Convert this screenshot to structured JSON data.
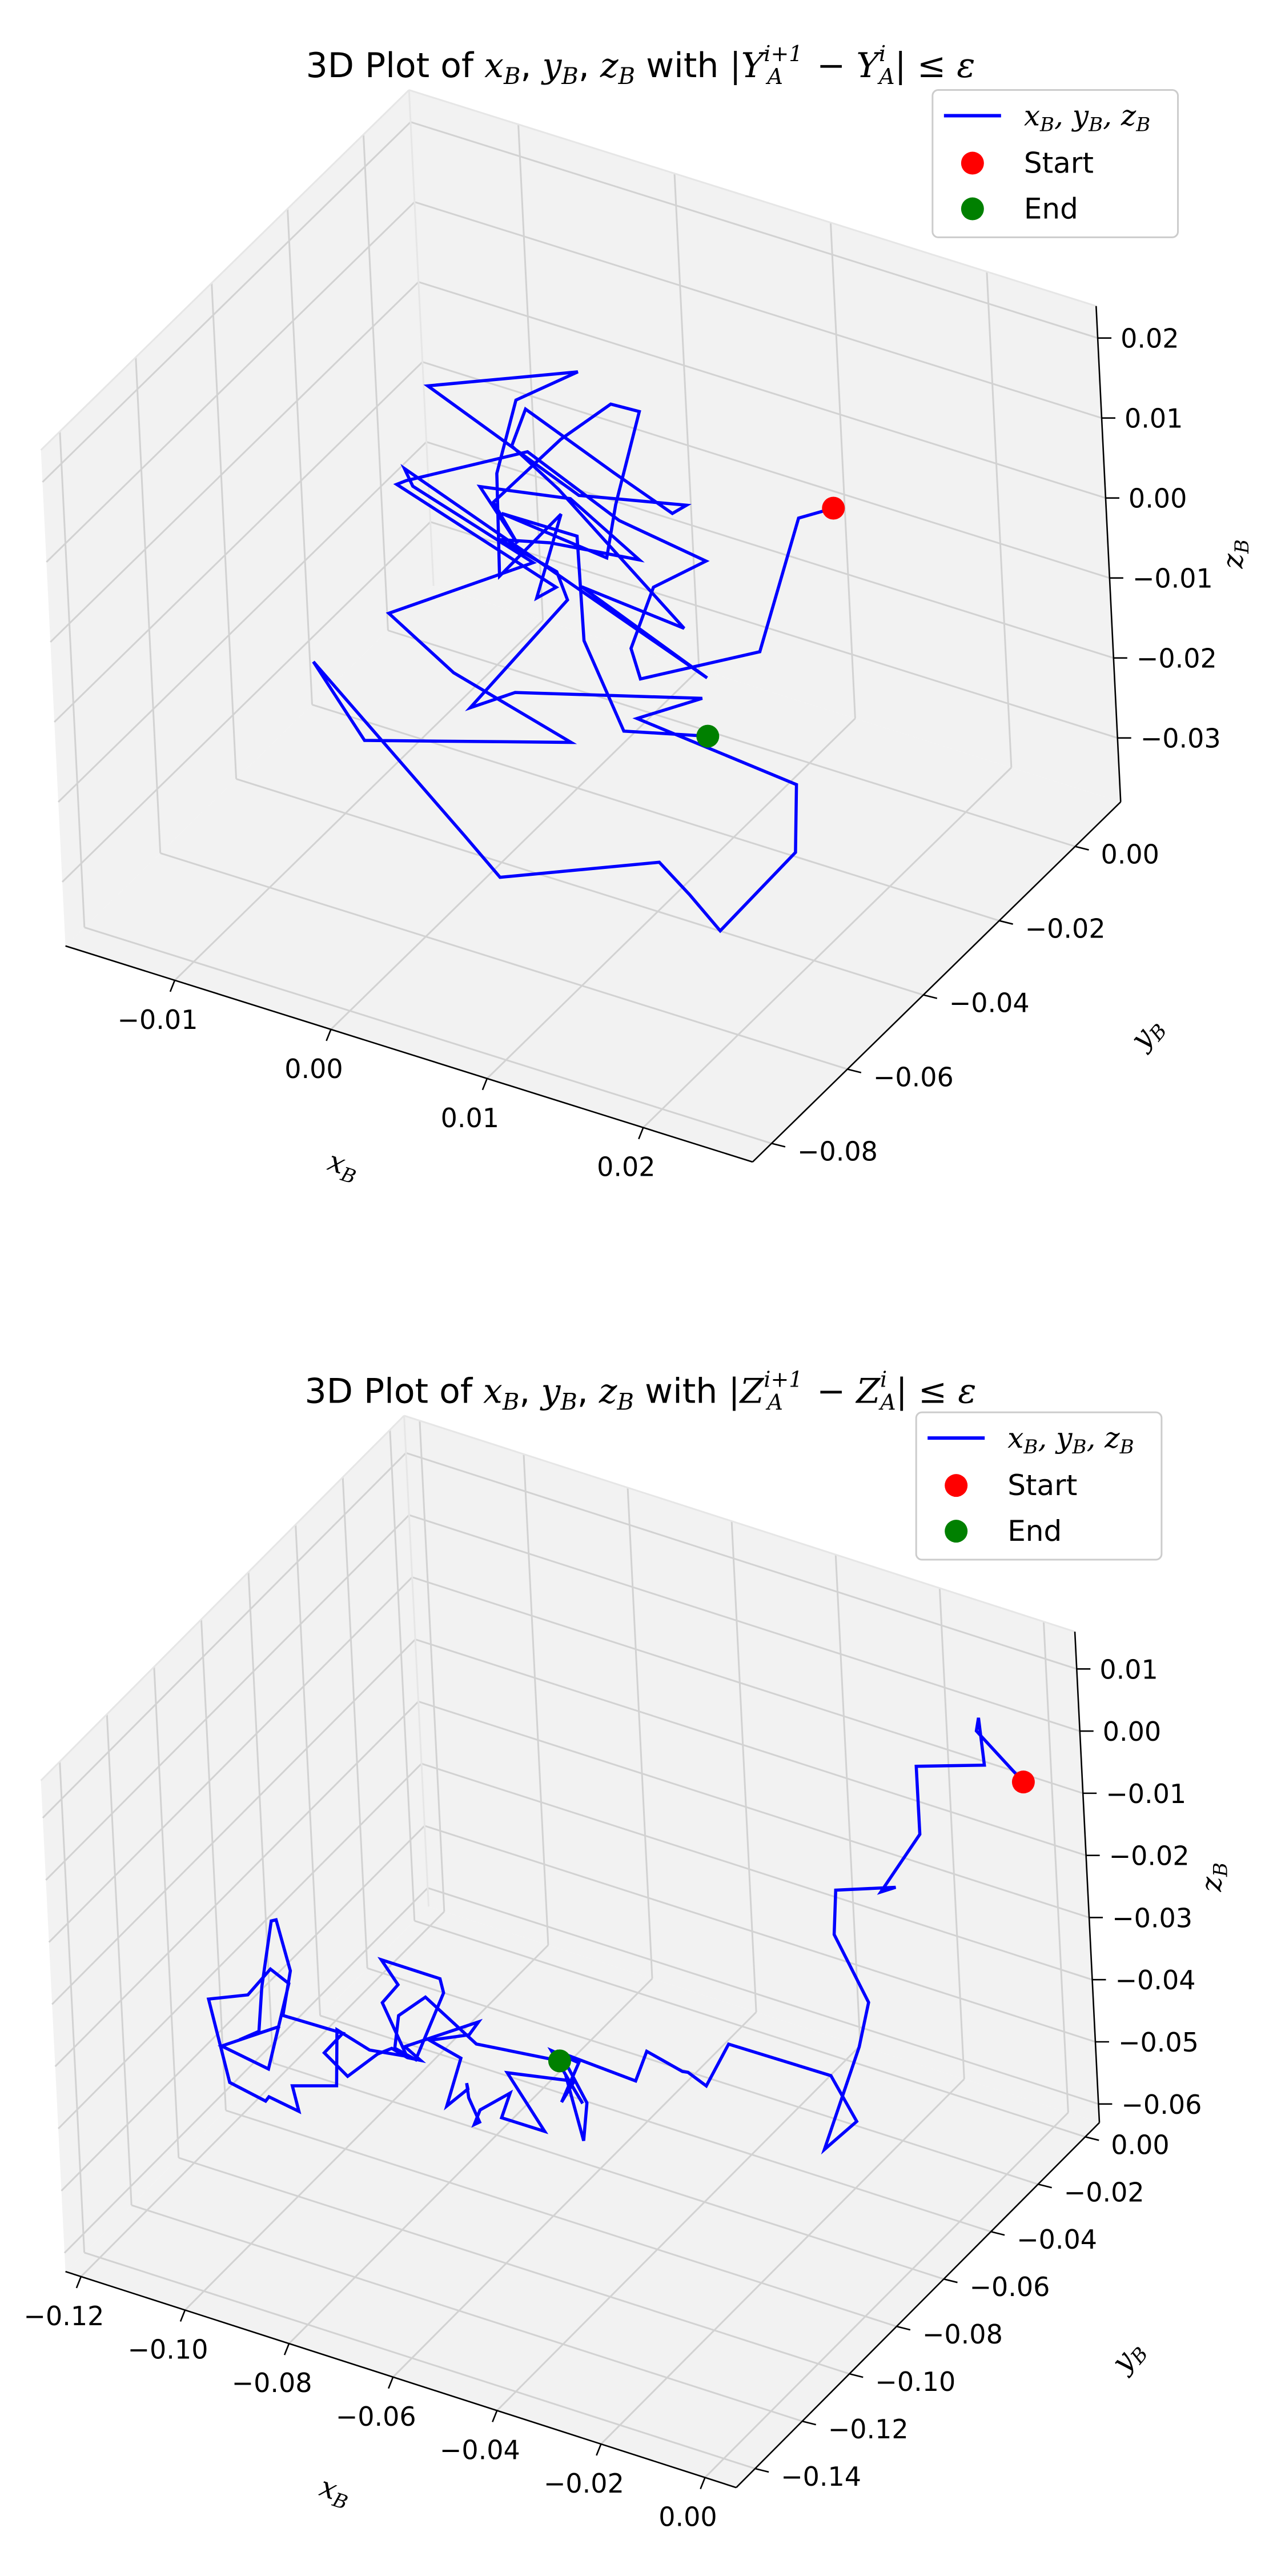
{
  "colors": {
    "trajectory": "#0000ff",
    "start_marker": "#ff0000",
    "end_marker": "#008000",
    "pane": "#f2f2f2",
    "grid": "#d2d2d2"
  },
  "chart_data": [
    {
      "type": "line3d",
      "title_prefix": "3D Plot of",
      "title_vars": "x_B, y_B, z_B",
      "title_connector": "with",
      "title_condition": "|Y_A^{i+1} − Y_A^{i}| ≤ ε",
      "xlabel": "x_B",
      "ylabel": "y_B",
      "zlabel": "z_B",
      "xlim": [
        -0.017,
        0.027
      ],
      "ylim": [
        -0.085,
        0.012
      ],
      "zlim": [
        -0.038,
        0.024
      ],
      "x_ticks": [
        -0.01,
        0.0,
        0.01,
        0.02
      ],
      "x_tick_labels": [
        "−0.01",
        "0.00",
        "0.01",
        "0.02"
      ],
      "y_ticks": [
        0.0,
        -0.02,
        -0.04,
        -0.06,
        -0.08
      ],
      "y_tick_labels": [
        "0.00",
        "−0.02",
        "−0.04",
        "−0.06",
        "−0.08"
      ],
      "z_ticks": [
        0.02,
        0.01,
        0.0,
        -0.01,
        -0.02,
        -0.03
      ],
      "z_tick_labels": [
        "0.02",
        "0.01",
        "0.00",
        "−0.01",
        "−0.02",
        "−0.03"
      ],
      "legend": {
        "position": "upper right",
        "entries": [
          "x_B, y_B, z_B",
          "Start",
          "End"
        ]
      },
      "grid": true,
      "start": {
        "x": 0.0156,
        "y": -0.0125,
        "z": 0.0031
      },
      "end": {
        "x": 0.0098,
        "y": -0.0245,
        "z": -0.0234
      },
      "series": {
        "x": [
          0.0156,
          0.0132,
          0.0125,
          0.0069,
          0.0046,
          0.0039,
          0.0059,
          0.0023,
          -0.0036,
          -0.0085,
          -0.0067,
          0.0043,
          0.0009,
          0.0012,
          -0.0024,
          -0.0038,
          -0.0046,
          -0.0025,
          -0.0092,
          0.0016,
          0.0073,
          0.0071,
          0.0022,
          -0.0046,
          -0.0044,
          -0.0011,
          0.0105,
          0.0021,
          0.0122,
          -0.0084,
          -0.0062,
          0.0018,
          -0.0046,
          -0.0013,
          0.0071,
          -0.0033,
          -0.0071,
          0.0042,
          0.0066,
          0.0154,
          0.0185,
          0.0193,
          0.0223,
          0.0231,
          0.0131,
          0.0136,
          0.0015,
          -0.0015,
          0.0029,
          0.0011,
          -0.0026,
          0.0013,
          0.0061,
          0.0001,
          -0.0058,
          -0.0024,
          -0.0052,
          -0.0026,
          0.0014,
          0.0044,
          0.0045,
          0.0023,
          -0.0045,
          -0.0015,
          0.0004,
          0.0049,
          0.0098
        ],
        "y": [
          -0.0125,
          -0.0121,
          -0.0208,
          -0.0295,
          -0.0226,
          -0.0135,
          -0.0077,
          -0.0151,
          -0.0145,
          -0.0264,
          -0.0358,
          -0.0395,
          -0.0314,
          -0.0254,
          -0.0277,
          -0.0217,
          -0.0129,
          -0.0051,
          -0.0171,
          -0.0222,
          -0.0173,
          -0.0202,
          -0.0155,
          -0.0106,
          -0.0153,
          -0.0168,
          -0.0318,
          -0.0246,
          -0.0332,
          -0.0271,
          -0.0337,
          -0.0353,
          -0.0475,
          -0.0447,
          -0.0485,
          -0.0602,
          -0.0574,
          -0.0653,
          -0.0661,
          -0.0599,
          -0.0647,
          -0.0605,
          -0.0522,
          -0.0542,
          -0.0548,
          -0.0401,
          -0.0403,
          -0.0402,
          -0.0314,
          -0.0268,
          -0.0263,
          -0.0289,
          -0.0252,
          -0.0186,
          -0.0184,
          -0.0228,
          -0.0175,
          -0.0098,
          -0.0123,
          -0.0168,
          -0.0243,
          -0.0187,
          -0.0183,
          -0.0112,
          -0.0181,
          -0.0266,
          -0.0245
        ],
        "z": [
          0.0031,
          0.0002,
          -0.0129,
          -0.0157,
          -0.0165,
          -0.0135,
          -0.0117,
          -0.0054,
          -0.0007,
          -0.0018,
          0.0032,
          -0.0012,
          -0.0084,
          -0.0005,
          -0.0094,
          -0.0002,
          0.0044,
          0.0056,
          0.0053,
          0.0006,
          0.0006,
          0.0008,
          0.0007,
          0.0022,
          -0.0001,
          -0.0028,
          -0.0061,
          -0.0094,
          -0.0106,
          0.0001,
          0.0023,
          -0.0016,
          -0.0062,
          -0.0129,
          -0.0147,
          -0.0154,
          -0.0092,
          -0.0203,
          -0.0237,
          -0.0193,
          -0.0192,
          -0.0252,
          -0.0174,
          -0.0075,
          -0.0051,
          -0.0091,
          -0.0157,
          -0.0195,
          -0.0074,
          -0.0071,
          -0.0056,
          -0.0024,
          -0.0033,
          -0.0024,
          -0.0046,
          -0.0076,
          -0.0066,
          -0.0007,
          0.0073,
          0.0103,
          0.0022,
          -0.0084,
          -0.0072,
          -0.0115,
          -0.0202,
          -0.0248,
          -0.0234
        ]
      }
    },
    {
      "type": "line3d",
      "title_prefix": "3D Plot of",
      "title_vars": "x_B, y_B, z_B",
      "title_connector": "with",
      "title_condition": "|Z_A^{i+1} − Z_A^{i}| ≤ ε",
      "xlabel": "x_B",
      "ylabel": "y_B",
      "zlabel": "z_B",
      "xlim": [
        -0.123,
        0.006
      ],
      "ylim": [
        -0.148,
        0.006
      ],
      "zlim": [
        -0.063,
        0.016
      ],
      "x_ticks": [
        -0.12,
        -0.1,
        -0.08,
        -0.06,
        -0.04,
        -0.02,
        0.0
      ],
      "x_tick_labels": [
        "−0.12",
        "−0.10",
        "−0.08",
        "−0.06",
        "−0.04",
        "−0.02",
        "0.00"
      ],
      "y_ticks": [
        0.0,
        -0.02,
        -0.04,
        -0.06,
        -0.08,
        -0.1,
        -0.12,
        -0.14
      ],
      "y_tick_labels": [
        "0.00",
        "−0.02",
        "−0.04",
        "−0.06",
        "−0.08",
        "−0.10",
        "−0.12",
        "−0.14"
      ],
      "z_ticks": [
        0.01,
        0.0,
        -0.01,
        -0.02,
        -0.03,
        -0.04,
        -0.05,
        -0.06
      ],
      "z_tick_labels": [
        "0.01",
        "0.00",
        "−0.01",
        "−0.02",
        "−0.03",
        "−0.04",
        "−0.05",
        "−0.06"
      ],
      "legend": {
        "position": "upper right",
        "entries": [
          "x_B, y_B, z_B",
          "Start",
          "End"
        ]
      },
      "grid": true,
      "start": {
        "x": 0.0026,
        "y": -0.0108,
        "z": -0.0027
      },
      "end": {
        "x": -0.0668,
        "y": -0.0603,
        "z": -0.0474
      },
      "series": {
        "x": [
          0.0026,
          -0.0071,
          -0.0071,
          -0.0007,
          -0.0131,
          -0.0119,
          -0.0184,
          -0.0153,
          -0.0241,
          -0.0213,
          -0.0194,
          -0.0221,
          -0.0241,
          -0.0193,
          -0.0209,
          -0.0416,
          -0.0455,
          -0.0454,
          -0.0506,
          -0.0539,
          -0.0549,
          -0.0672,
          -0.0626,
          -0.0592,
          -0.0646,
          -0.0605,
          -0.0664,
          -0.0626,
          -0.0648,
          -0.0655,
          -0.0711,
          -0.0635,
          -0.0741,
          -0.0736,
          -0.0761,
          -0.0754,
          -0.0783,
          -0.0784,
          -0.0774,
          -0.0759,
          -0.0818,
          -0.0794,
          -0.0823,
          -0.0761,
          -0.0784,
          -0.0883,
          -0.0841,
          -0.0869,
          -0.0873,
          -0.0929,
          -0.0961,
          -0.1014,
          -0.0985,
          -0.1065,
          -0.1081,
          -0.1101,
          -0.1131,
          -0.1135,
          -0.1129,
          -0.1162,
          -0.1099,
          -0.1177,
          -0.1068,
          -0.1079,
          -0.1052,
          -0.1073,
          -0.1126,
          -0.1087,
          -0.1037,
          -0.1063,
          -0.1002,
          -0.1024,
          -0.0935,
          -0.0957,
          -0.0898,
          -0.0863,
          -0.0915,
          -0.0871,
          -0.0924,
          -0.0828,
          -0.0789,
          -0.0814,
          -0.0881,
          -0.0885,
          -0.0868,
          -0.0756,
          -0.0668
        ],
        "y": [
          -0.0108,
          -0.0087,
          -0.0076,
          -0.0194,
          -0.0213,
          -0.0237,
          -0.0272,
          -0.0275,
          -0.0336,
          -0.0409,
          -0.0323,
          -0.0314,
          -0.0434,
          -0.0397,
          -0.0459,
          -0.0438,
          -0.0456,
          -0.0529,
          -0.0444,
          -0.0516,
          -0.0546,
          -0.0591,
          -0.0588,
          -0.0679,
          -0.0627,
          -0.0649,
          -0.0643,
          -0.0613,
          -0.0645,
          -0.0575,
          -0.0728,
          -0.0746,
          -0.0698,
          -0.0669,
          -0.0742,
          -0.0783,
          -0.0701,
          -0.0738,
          -0.0764,
          -0.0791,
          -0.0758,
          -0.0741,
          -0.0804,
          -0.0771,
          -0.0683,
          -0.0781,
          -0.0807,
          -0.0802,
          -0.0855,
          -0.0798,
          -0.0857,
          -0.0837,
          -0.0818,
          -0.0891,
          -0.0819,
          -0.0825,
          -0.0783,
          -0.0826,
          -0.0859,
          -0.0871,
          -0.0835,
          -0.0913,
          -0.0954,
          -0.0832,
          -0.0959,
          -0.1012,
          -0.1062,
          -0.1074,
          -0.1036,
          -0.0968,
          -0.0976,
          -0.0952,
          -0.0957,
          -0.0899,
          -0.0893,
          -0.0816,
          -0.0797,
          -0.0821,
          -0.0774,
          -0.0739,
          -0.0808,
          -0.0882,
          -0.0826,
          -0.0796,
          -0.0719,
          -0.0754,
          -0.0603
        ],
        "z": [
          -0.0027,
          0.0021,
          0.0038,
          0.0024,
          -0.0004,
          -0.0101,
          -0.0198,
          -0.0181,
          -0.0186,
          -0.0222,
          -0.0359,
          -0.0441,
          -0.0566,
          -0.0522,
          -0.0429,
          -0.0442,
          -0.0513,
          -0.0463,
          -0.0508,
          -0.0457,
          -0.0496,
          -0.0466,
          -0.0536,
          -0.0553,
          -0.0482,
          -0.0508,
          -0.0441,
          -0.0462,
          -0.0519,
          -0.0514,
          -0.0457,
          -0.0524,
          -0.0549,
          -0.0519,
          -0.0525,
          -0.0531,
          -0.0566,
          -0.0513,
          -0.0477,
          -0.0472,
          -0.0528,
          -0.0451,
          -0.0406,
          -0.0393,
          -0.0412,
          -0.0441,
          -0.0442,
          -0.0447,
          -0.0413,
          -0.0459,
          -0.0481,
          -0.0465,
          -0.0433,
          -0.0398,
          -0.0358,
          -0.0279,
          -0.0305,
          -0.0396,
          -0.0453,
          -0.0471,
          -0.0446,
          -0.0469,
          -0.0461,
          -0.0373,
          -0.0294,
          -0.0321,
          -0.0323,
          -0.0442,
          -0.0473,
          -0.0499,
          -0.0503,
          -0.0477,
          -0.0451,
          -0.0389,
          -0.0408,
          -0.0438,
          -0.0373,
          -0.0323,
          -0.0315,
          -0.0333,
          -0.0319,
          -0.0405,
          -0.0426,
          -0.0386,
          -0.0381,
          -0.0413,
          -0.0474
        ]
      }
    }
  ]
}
